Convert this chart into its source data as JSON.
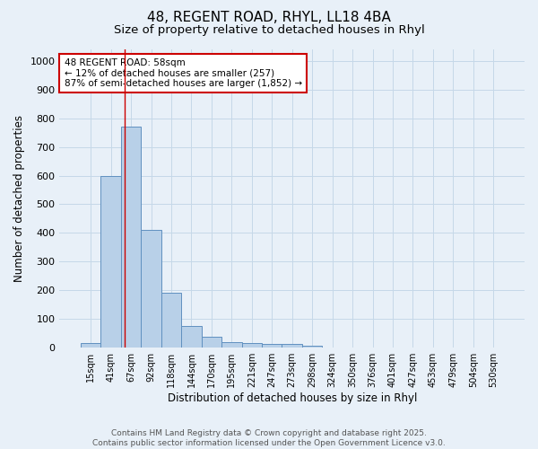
{
  "title_line1": "48, REGENT ROAD, RHYL, LL18 4BA",
  "title_line2": "Size of property relative to detached houses in Rhyl",
  "xlabel": "Distribution of detached houses by size in Rhyl",
  "ylabel": "Number of detached properties",
  "categories": [
    "15sqm",
    "41sqm",
    "67sqm",
    "92sqm",
    "118sqm",
    "144sqm",
    "170sqm",
    "195sqm",
    "221sqm",
    "247sqm",
    "273sqm",
    "298sqm",
    "324sqm",
    "350sqm",
    "376sqm",
    "401sqm",
    "427sqm",
    "453sqm",
    "479sqm",
    "504sqm",
    "530sqm"
  ],
  "values": [
    15,
    600,
    770,
    410,
    193,
    75,
    37,
    18,
    15,
    12,
    12,
    7,
    0,
    0,
    0,
    0,
    0,
    0,
    0,
    0,
    0
  ],
  "bar_color": "#b8d0e8",
  "bar_edge_color": "#6090c0",
  "grid_color": "#c5d8e8",
  "bg_color": "#e8f0f8",
  "annotation_text": "48 REGENT ROAD: 58sqm\n← 12% of detached houses are smaller (257)\n87% of semi-detached houses are larger (1,852) →",
  "annotation_box_color": "#ffffff",
  "annotation_box_edge": "#cc0000",
  "red_line_x": 1.7,
  "ylim": [
    0,
    1040
  ],
  "yticks": [
    0,
    100,
    200,
    300,
    400,
    500,
    600,
    700,
    800,
    900,
    1000
  ],
  "footnote": "Contains HM Land Registry data © Crown copyright and database right 2025.\nContains public sector information licensed under the Open Government Licence v3.0.",
  "title_fontsize": 11,
  "subtitle_fontsize": 9.5,
  "tick_fontsize": 7,
  "label_fontsize": 8.5,
  "annotation_fontsize": 7.5,
  "footnote_fontsize": 6.5
}
